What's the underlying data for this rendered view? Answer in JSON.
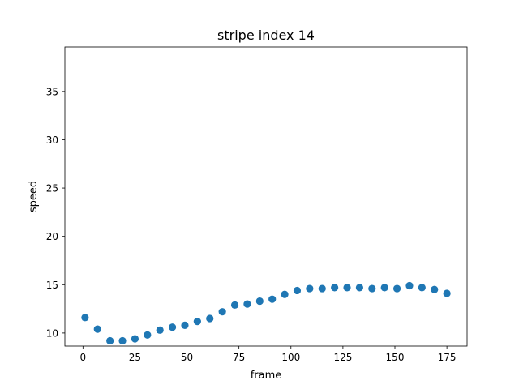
{
  "chart_data": {
    "type": "scatter",
    "title": "stripe index 14",
    "xlabel": "frame",
    "ylabel": "speed",
    "xlim": [
      -8.7,
      184.7
    ],
    "ylim": [
      8.65,
      39.6
    ],
    "xticks": [
      0,
      25,
      50,
      75,
      100,
      125,
      150,
      175
    ],
    "yticks": [
      10,
      15,
      20,
      25,
      30,
      35
    ],
    "grid": false,
    "marker_color": "#1f77b4",
    "points": [
      {
        "x": 1,
        "y": 11.6
      },
      {
        "x": 7,
        "y": 10.4
      },
      {
        "x": 13,
        "y": 9.2
      },
      {
        "x": 19,
        "y": 9.2
      },
      {
        "x": 25,
        "y": 9.4
      },
      {
        "x": 31,
        "y": 9.8
      },
      {
        "x": 37,
        "y": 10.3
      },
      {
        "x": 43,
        "y": 10.6
      },
      {
        "x": 49,
        "y": 10.8
      },
      {
        "x": 55,
        "y": 11.2
      },
      {
        "x": 61,
        "y": 11.5
      },
      {
        "x": 67,
        "y": 12.2
      },
      {
        "x": 73,
        "y": 12.9
      },
      {
        "x": 79,
        "y": 13.0
      },
      {
        "x": 85,
        "y": 13.3
      },
      {
        "x": 91,
        "y": 13.5
      },
      {
        "x": 97,
        "y": 14.0
      },
      {
        "x": 103,
        "y": 14.4
      },
      {
        "x": 109,
        "y": 14.6
      },
      {
        "x": 115,
        "y": 14.6
      },
      {
        "x": 121,
        "y": 14.7
      },
      {
        "x": 127,
        "y": 14.7
      },
      {
        "x": 133,
        "y": 14.7
      },
      {
        "x": 139,
        "y": 14.6
      },
      {
        "x": 145,
        "y": 14.7
      },
      {
        "x": 151,
        "y": 14.6
      },
      {
        "x": 157,
        "y": 14.9
      },
      {
        "x": 163,
        "y": 14.7
      },
      {
        "x": 169,
        "y": 14.5
      },
      {
        "x": 175,
        "y": 14.1
      }
    ]
  }
}
